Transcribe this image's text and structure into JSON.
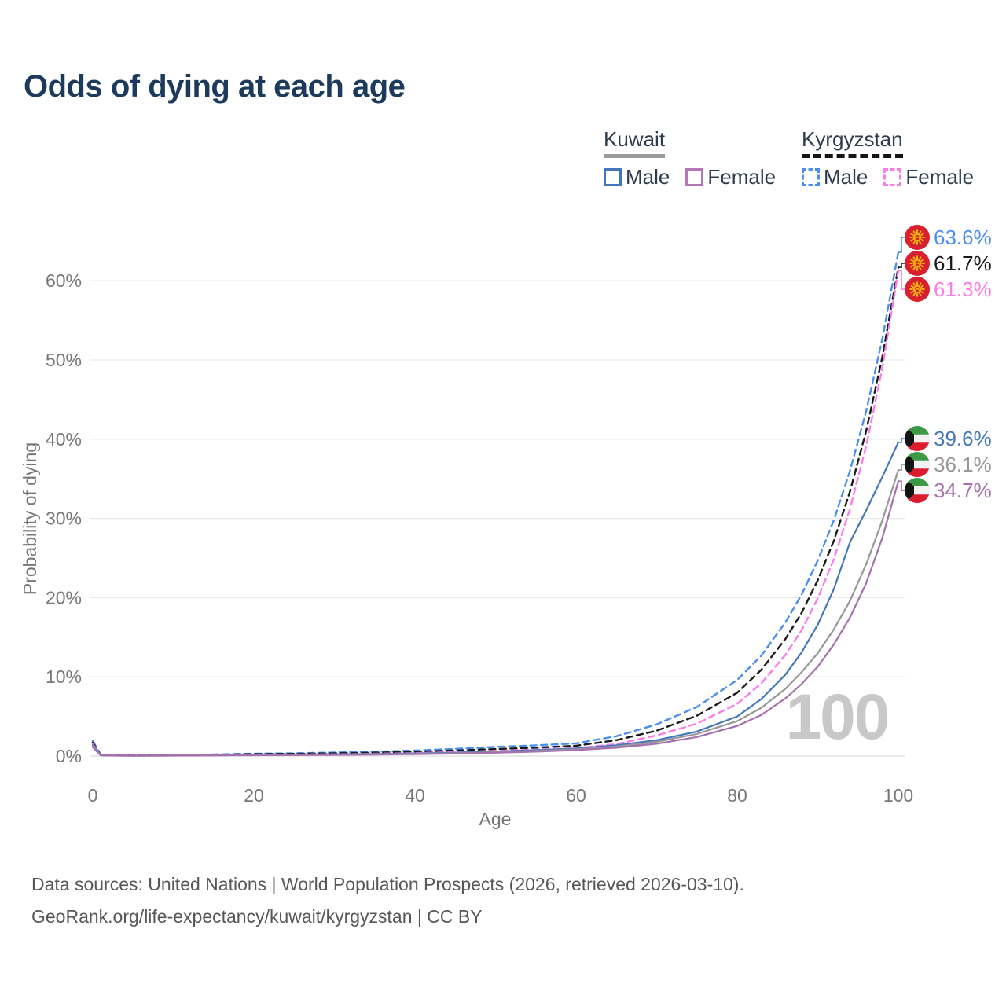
{
  "title": "Odds of dying at each age",
  "watermark": "100",
  "legend": {
    "groups": [
      {
        "name": "Kuwait",
        "line_style": "solid",
        "underline_color": "#9a9a9a",
        "items": [
          {
            "label": "Male",
            "color": "#4376bd"
          },
          {
            "label": "Female",
            "color": "#b476b4"
          }
        ]
      },
      {
        "name": "Kyrgyzstan",
        "line_style": "dashed",
        "underline_color": "#151515",
        "items": [
          {
            "label": "Male",
            "color": "#4b8ef1"
          },
          {
            "label": "Female",
            "color": "#fb7ce8"
          }
        ]
      }
    ]
  },
  "footer": {
    "line1": "Data sources: United Nations | World Population Prospects (2026, retrieved 2026-03-10).",
    "line2": "GeoRank.org/life-expectancy/kuwait/kyrgyzstan | CC BY"
  },
  "chart_data": {
    "type": "line",
    "title": "Odds of dying at each age",
    "xlabel": "Age",
    "ylabel": "Probability of dying",
    "x_ticks": [
      0,
      20,
      40,
      60,
      80,
      100
    ],
    "y_tick_labels": [
      "0%",
      "10%",
      "20%",
      "30%",
      "40%",
      "50%",
      "60%"
    ],
    "xlim": [
      0,
      100
    ],
    "ylim_pct": [
      0,
      66
    ],
    "grid": "horizontal",
    "legend_position": "top-right",
    "x": [
      0,
      1,
      2,
      5,
      10,
      15,
      20,
      25,
      30,
      35,
      40,
      45,
      50,
      55,
      60,
      65,
      70,
      75,
      80,
      83,
      86,
      88,
      90,
      92,
      94,
      96,
      98,
      100
    ],
    "series": [
      {
        "name": "Kyrgyzstan — Male",
        "country": "Kyrgyzstan",
        "sex": "Male",
        "style": "dashed",
        "color": "#4b8ef1",
        "flag": "kyrgyzstan",
        "end_label": "63.6%",
        "values": [
          1.9,
          0.15,
          0.1,
          0.08,
          0.1,
          0.2,
          0.3,
          0.35,
          0.45,
          0.55,
          0.7,
          0.9,
          1.15,
          1.35,
          1.6,
          2.5,
          4.0,
          6.2,
          9.6,
          12.7,
          16.9,
          20.4,
          24.7,
          29.8,
          36.0,
          43.5,
          52.6,
          63.6
        ]
      },
      {
        "name": "Kyrgyzstan — Both sexes",
        "country": "Kyrgyzstan",
        "sex": "Both",
        "style": "dashed",
        "color": "#1a1a1a",
        "flag": "kyrgyzstan",
        "end_label": "61.7%",
        "values": [
          1.7,
          0.13,
          0.09,
          0.07,
          0.09,
          0.16,
          0.24,
          0.28,
          0.35,
          0.43,
          0.55,
          0.7,
          0.88,
          1.05,
          1.3,
          2.0,
          3.2,
          5.1,
          8.0,
          10.9,
          14.8,
          18.1,
          22.2,
          27.2,
          33.4,
          41.0,
          50.3,
          61.7
        ]
      },
      {
        "name": "Kyrgyzstan — Female",
        "country": "Kyrgyzstan",
        "sex": "Female",
        "style": "dashed",
        "color": "#fb7ce8",
        "flag": "kyrgyzstan",
        "end_label": "61.3%",
        "values": [
          1.5,
          0.11,
          0.08,
          0.06,
          0.07,
          0.1,
          0.16,
          0.19,
          0.23,
          0.29,
          0.38,
          0.5,
          0.65,
          0.82,
          1.0,
          1.5,
          2.6,
          4.1,
          6.6,
          9.2,
          12.8,
          15.9,
          19.9,
          24.9,
          31.2,
          39.1,
          48.9,
          61.3
        ]
      },
      {
        "name": "Kuwait — Male",
        "country": "Kuwait",
        "sex": "Male",
        "style": "solid",
        "color": "#4376bd",
        "flag": "kuwait",
        "end_label": "39.6%",
        "values": [
          1.35,
          0.1,
          0.07,
          0.05,
          0.06,
          0.1,
          0.14,
          0.17,
          0.21,
          0.26,
          0.33,
          0.44,
          0.58,
          0.74,
          0.95,
          1.35,
          2.0,
          3.1,
          5.0,
          7.2,
          10.3,
          13.1,
          16.6,
          21.1,
          27.0,
          31.0,
          35.2,
          39.6
        ]
      },
      {
        "name": "Kuwait — Both sexes",
        "country": "Kuwait",
        "sex": "Both",
        "style": "solid",
        "color": "#979797",
        "flag": "kuwait",
        "end_label": "36.1%",
        "values": [
          1.25,
          0.09,
          0.06,
          0.045,
          0.055,
          0.09,
          0.12,
          0.14,
          0.17,
          0.22,
          0.28,
          0.37,
          0.49,
          0.64,
          0.85,
          1.2,
          1.8,
          2.8,
          4.4,
          6.1,
          8.5,
          10.6,
          13.0,
          16.0,
          19.6,
          24.2,
          29.7,
          36.1
        ]
      },
      {
        "name": "Kuwait — Female",
        "country": "Kuwait",
        "sex": "Female",
        "style": "solid",
        "color": "#a66fae",
        "flag": "kuwait",
        "end_label": "34.7%",
        "values": [
          1.1,
          0.08,
          0.055,
          0.04,
          0.05,
          0.08,
          0.1,
          0.12,
          0.15,
          0.19,
          0.24,
          0.32,
          0.42,
          0.56,
          0.75,
          1.05,
          1.55,
          2.4,
          3.8,
          5.2,
          7.3,
          9.1,
          11.3,
          14.1,
          17.5,
          21.8,
          27.5,
          34.7
        ]
      }
    ]
  }
}
